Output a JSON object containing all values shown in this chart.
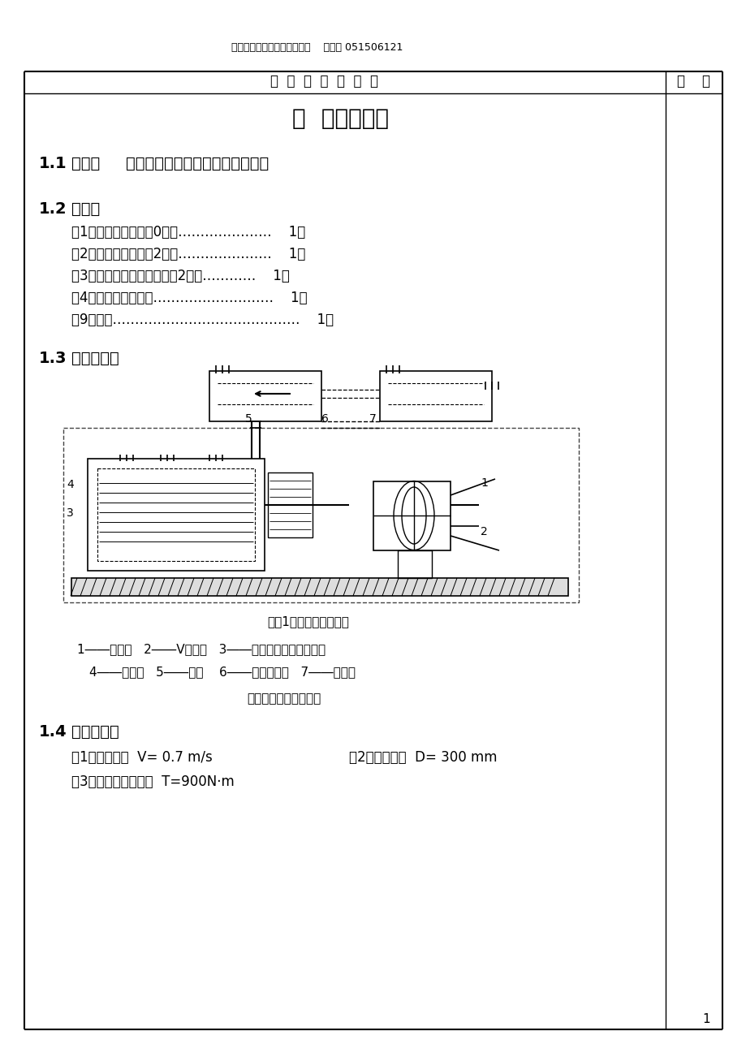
{
  "header_text": "《机械设计》课程设计说明书    段伟琼 051506121",
  "col1_header": "设  计  计  算  及  说  明",
  "col2_header": "结    果",
  "main_title": "一  设计任务书",
  "sec1_label": "1.1",
  "sec1_title": "题目：",
  "sec1_content": "铸锂车间型沙传送带传送装置设计",
  "sec2_label": "1.2",
  "sec2_title": "任务：",
  "tasks": [
    "（1）减速器装配图（0号）…………………    1张",
    "（2）低速轴零件图（2号）…………………    1张",
    "（3）低速级大齿轮零件图（2号）…………    1张",
    "（4）设计计算说明书………………………    1份",
    "（9）草图……………………………………    1份"
  ],
  "sec3_label": "1.3",
  "sec3_title": "传动方案：",
  "diagram_caption": "图（1）传动方案示意图",
  "legend_line1": "1――电动机   2――V带传动   3――展开式双级齿轮减速器",
  "legend_line2": "4――联轴器   5――底座    6――传送带鼓轮   7――传送带",
  "legend_note": "（各轴代号见第六页）",
  "sec4_label": "1.4",
  "sec4_title": "设计参数：",
  "param1": "（1）传送速度  V= 0.7 m/s",
  "param2": "（2）鼓轮直径  D= 300 mm",
  "param3": "（3）鼓轮轴所需扭矩  T=900N·m",
  "page_num": "1",
  "bg_color": "#ffffff",
  "text_color": "#000000",
  "line_color": "#000000"
}
